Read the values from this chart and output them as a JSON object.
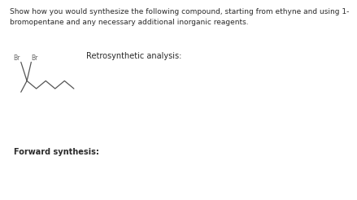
{
  "title_text": "Show how you would synthesize the following compound, starting from ethyne and using 1-\nbromopentane and any necessary additional inorganic reagents.",
  "retro_label": "Retrosynthetic analysis:",
  "forward_label": "Forward synthesis:",
  "bg_color": "#ffffff",
  "text_color": "#2a2a2a",
  "box_edge_color": "#b0b0b0",
  "molecule_color": "#555555",
  "br_color": "#666666",
  "title_fontsize": 6.5,
  "label_fontsize": 7.0,
  "br_fontsize": 5.5
}
